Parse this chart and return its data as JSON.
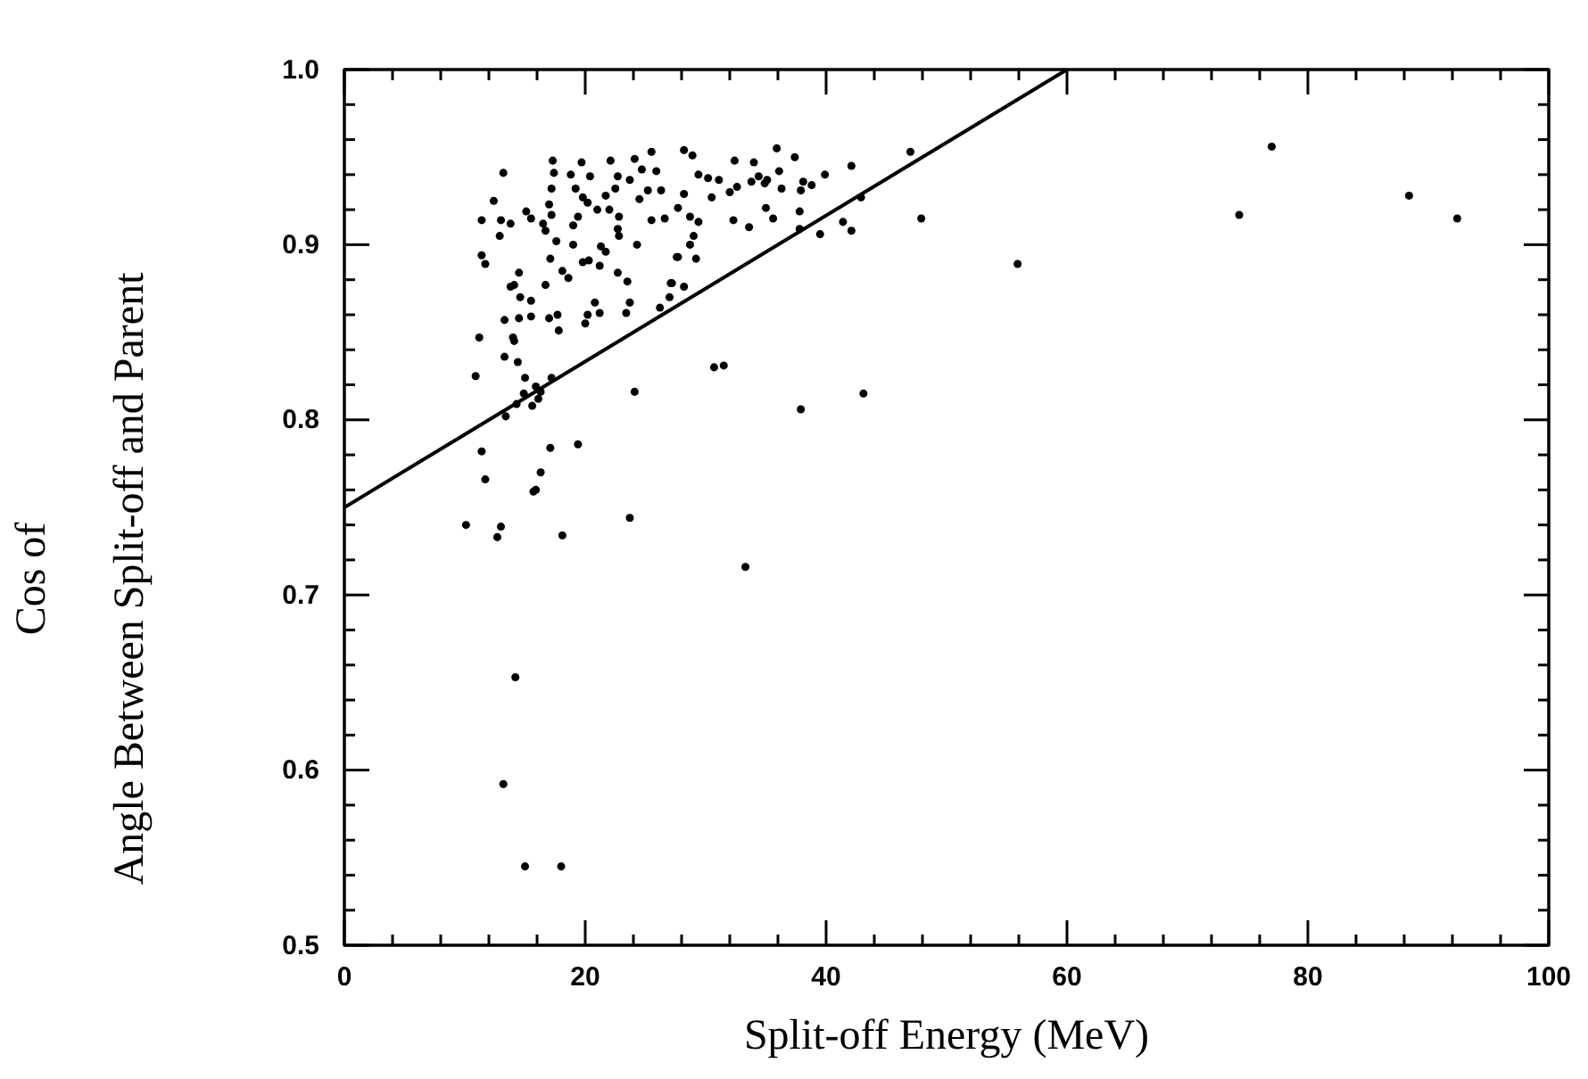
{
  "chart_data": {
    "type": "scatter",
    "xlabel": "Split-off Energy (MeV)",
    "ylabel": "Cos of\nAngle Between Split-off and Parent",
    "xlim": [
      0,
      100
    ],
    "ylim": [
      0.5,
      1.0
    ],
    "xticks": [
      0,
      {
        "value": 4,
        "label": null
      },
      {
        "value": 8,
        "label": null
      },
      {
        "value": 12,
        "label": null
      },
      {
        "value": 16,
        "label": null
      },
      20,
      {
        "value": 24,
        "label": null
      },
      {
        "value": 28,
        "label": null
      },
      {
        "value": 32,
        "label": null
      },
      {
        "value": 36,
        "label": null
      },
      40,
      {
        "value": 44,
        "label": null
      },
      {
        "value": 48,
        "label": null
      },
      {
        "value": 52,
        "label": null
      },
      {
        "value": 56,
        "label": null
      },
      60,
      {
        "value": 64,
        "label": null
      },
      {
        "value": 68,
        "label": null
      },
      {
        "value": 72,
        "label": null
      },
      {
        "value": 76,
        "label": null
      },
      80,
      {
        "value": 84,
        "label": null
      },
      {
        "value": 88,
        "label": null
      },
      {
        "value": 92,
        "label": null
      },
      {
        "value": 96,
        "label": null
      },
      100
    ],
    "yticks": [
      0.5,
      {
        "value": 0.52,
        "label": null
      },
      {
        "value": 0.54,
        "label": null
      },
      {
        "value": 0.56,
        "label": null
      },
      {
        "value": 0.58,
        "label": null
      },
      0.6,
      {
        "value": 0.62,
        "label": null
      },
      {
        "value": 0.64,
        "label": null
      },
      {
        "value": 0.66,
        "label": null
      },
      {
        "value": 0.68,
        "label": null
      },
      0.7,
      {
        "value": 0.72,
        "label": null
      },
      {
        "value": 0.74,
        "label": null
      },
      {
        "value": 0.76,
        "label": null
      },
      {
        "value": 0.78,
        "label": null
      },
      0.8,
      {
        "value": 0.82,
        "label": null
      },
      {
        "value": 0.84,
        "label": null
      },
      {
        "value": 0.86,
        "label": null
      },
      {
        "value": 0.88,
        "label": null
      },
      0.9,
      {
        "value": 0.92,
        "label": null
      },
      {
        "value": 0.94,
        "label": null
      },
      {
        "value": 0.96,
        "label": null
      },
      {
        "value": 0.98,
        "label": null
      },
      {
        "value": 1,
        "label": "1.0"
      }
    ],
    "grid": false,
    "marker": "circle",
    "series": [
      {
        "color": "#000000",
        "x": [
          13.2,
          12.4,
          17.3,
          17.4,
          18.8,
          19.7,
          22.1,
          24.1,
          25.5,
          24.7,
          25.9,
          20.4,
          22.7,
          23.7,
          17.2,
          19.2,
          22.5,
          25.2,
          26.3,
          19.8,
          21.7,
          24.5,
          17.0,
          20.2,
          21.0,
          22.0,
          15.1,
          17.2,
          19.4,
          15.5,
          22.8,
          11.4,
          13.0,
          13.8,
          16.5,
          19.0,
          25.5,
          26.6,
          22.7,
          16.7,
          22.8,
          12.9,
          17.6,
          19.0,
          21.3,
          21.7,
          24.3,
          11.4,
          11.7,
          17.1,
          19.8,
          20.3,
          21.2,
          27.6,
          14.5,
          18.1,
          18.6,
          22.7,
          23.5,
          13.8,
          14.1,
          16.7,
          27.2,
          14.6,
          15.5,
          20.8,
          23.7,
          27.0,
          13.3,
          14.5,
          15.5,
          17.0,
          17.7,
          17.8,
          20.2,
          21.2,
          20.0,
          23.4,
          26.2,
          11.2,
          14.0,
          14.1,
          13.3,
          14.4,
          10.9,
          15.0,
          17.2,
          15.9,
          16.3,
          14.9,
          16.1,
          14.3,
          15.6,
          24.1,
          13.4,
          11.4,
          17.1,
          19.4,
          11.7,
          16.3,
          15.7,
          15.9,
          10.1,
          13.0,
          12.7,
          18.1,
          23.7,
          14.2,
          13.2,
          15.0,
          18.0,
          28.2,
          28.9,
          35.9,
          37.4,
          32.4,
          34.0,
          42.1,
          47.0,
          77.0,
          29.4,
          30.2,
          31.1,
          34.4,
          35.1,
          36.1,
          38.1,
          38.8,
          39.9,
          32.6,
          33.8,
          34.9,
          36.3,
          37.9,
          28.2,
          30.5,
          32.0,
          27.7,
          35.0,
          37.8,
          28.7,
          29.4,
          32.3,
          35.6,
          33.6,
          41.4,
          42.1,
          47.9,
          42.9,
          37.8,
          39.5,
          29.0,
          28.7,
          27.7,
          29.2,
          27.1,
          28.2,
          55.9,
          74.3,
          88.4,
          92.4,
          30.7,
          31.5,
          37.9,
          43.1,
          33.3
        ],
        "values": [
          0.941,
          0.925,
          0.948,
          0.941,
          0.94,
          0.947,
          0.948,
          0.949,
          0.953,
          0.943,
          0.942,
          0.939,
          0.939,
          0.937,
          0.932,
          0.932,
          0.932,
          0.931,
          0.931,
          0.927,
          0.928,
          0.926,
          0.923,
          0.924,
          0.92,
          0.92,
          0.919,
          0.917,
          0.916,
          0.915,
          0.916,
          0.914,
          0.914,
          0.912,
          0.912,
          0.911,
          0.914,
          0.915,
          0.909,
          0.908,
          0.905,
          0.905,
          0.902,
          0.9,
          0.899,
          0.896,
          0.9,
          0.894,
          0.889,
          0.892,
          0.89,
          0.891,
          0.888,
          0.893,
          0.884,
          0.885,
          0.881,
          0.884,
          0.879,
          0.876,
          0.877,
          0.877,
          0.878,
          0.87,
          0.868,
          0.867,
          0.867,
          0.87,
          0.857,
          0.858,
          0.859,
          0.858,
          0.86,
          0.851,
          0.86,
          0.861,
          0.855,
          0.861,
          0.864,
          0.847,
          0.847,
          0.845,
          0.836,
          0.833,
          0.825,
          0.824,
          0.824,
          0.819,
          0.816,
          0.815,
          0.812,
          0.809,
          0.808,
          0.816,
          0.802,
          0.782,
          0.784,
          0.786,
          0.766,
          0.77,
          0.759,
          0.76,
          0.74,
          0.739,
          0.733,
          0.734,
          0.744,
          0.653,
          0.592,
          0.545,
          0.545,
          0.954,
          0.951,
          0.955,
          0.95,
          0.948,
          0.947,
          0.945,
          0.953,
          0.956,
          0.94,
          0.938,
          0.937,
          0.939,
          0.937,
          0.942,
          0.936,
          0.934,
          0.94,
          0.933,
          0.936,
          0.935,
          0.932,
          0.931,
          0.929,
          0.927,
          0.93,
          0.921,
          0.921,
          0.919,
          0.916,
          0.913,
          0.914,
          0.915,
          0.91,
          0.913,
          0.908,
          0.915,
          0.927,
          0.909,
          0.906,
          0.905,
          0.9,
          0.893,
          0.892,
          0.878,
          0.876,
          0.889,
          0.917,
          0.928,
          0.915,
          0.83,
          0.831,
          0.806,
          0.815,
          0.716
        ]
      },
      {
        "type": "line",
        "color": "#000000",
        "marker": "none",
        "line_style": "solid",
        "x": [
          0,
          60
        ],
        "values": [
          0.75,
          1.0
        ]
      }
    ]
  }
}
